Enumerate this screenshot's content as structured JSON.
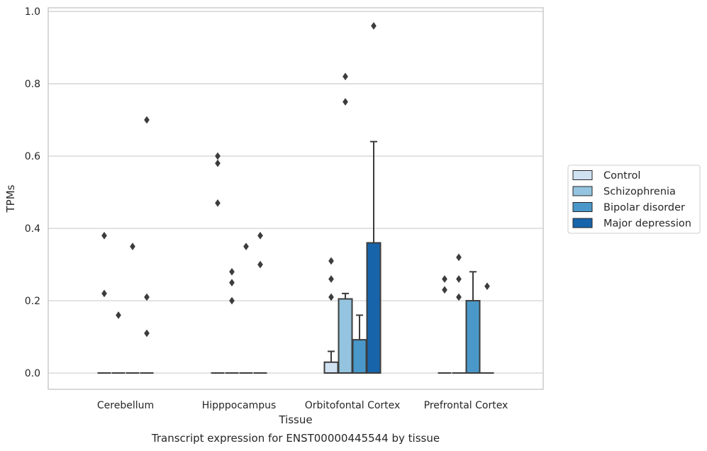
{
  "chart_data": {
    "type": "boxplot",
    "xlabel": "Tissue",
    "ylabel": "TPMs",
    "caption": "Transcript expression for ENST00000445544 by tissue",
    "categories": [
      "Cerebellum",
      "Hipppocampus",
      "Orbitofontal Cortex",
      "Prefrontal Cortex"
    ],
    "ylim": [
      -0.045,
      1.01
    ],
    "yticks": [
      0.0,
      0.2,
      0.4,
      0.6,
      0.8,
      1.0
    ],
    "ytick_labels": [
      "0.0",
      "0.2",
      "0.4",
      "0.6",
      "0.8",
      "1.0"
    ],
    "grid": "horizontal",
    "legend": {
      "placement": "right",
      "entries": [
        "Control",
        "Schizophrenia",
        "Bipolar disorder",
        "Major depression"
      ]
    },
    "series": [
      {
        "name": "Control",
        "color": "#d0e1f2",
        "boxes": [
          {
            "q1": 0,
            "median": 0,
            "q3": 0,
            "whisker_low": 0,
            "whisker_high": 0,
            "outliers": [
              0.38,
              0.22
            ]
          },
          {
            "q1": 0,
            "median": 0,
            "q3": 0,
            "whisker_low": 0,
            "whisker_high": 0,
            "outliers": [
              0.6,
              0.58,
              0.47
            ]
          },
          {
            "q1": 0,
            "median": 0,
            "q3": 0.03,
            "whisker_low": 0,
            "whisker_high": 0.06,
            "outliers": [
              0.31,
              0.26,
              0.21
            ]
          },
          {
            "q1": 0,
            "median": 0,
            "q3": 0,
            "whisker_low": 0,
            "whisker_high": 0,
            "outliers": [
              0.26,
              0.23
            ]
          }
        ]
      },
      {
        "name": "Schizophrenia",
        "color": "#94c4df",
        "boxes": [
          {
            "q1": 0,
            "median": 0,
            "q3": 0,
            "whisker_low": 0,
            "whisker_high": 0,
            "outliers": [
              0.16
            ]
          },
          {
            "q1": 0,
            "median": 0,
            "q3": 0,
            "whisker_low": 0,
            "whisker_high": 0,
            "outliers": [
              0.28,
              0.25,
              0.2
            ]
          },
          {
            "q1": 0,
            "median": 0,
            "q3": 0.205,
            "whisker_low": 0,
            "whisker_high": 0.22,
            "outliers": [
              0.82,
              0.75
            ]
          },
          {
            "q1": 0,
            "median": 0,
            "q3": 0,
            "whisker_low": 0,
            "whisker_high": 0,
            "outliers": [
              0.32,
              0.26,
              0.21
            ]
          }
        ]
      },
      {
        "name": "Bipolar disorder",
        "color": "#4a98c9",
        "boxes": [
          {
            "q1": 0,
            "median": 0,
            "q3": 0,
            "whisker_low": 0,
            "whisker_high": 0,
            "outliers": [
              0.35
            ]
          },
          {
            "q1": 0,
            "median": 0,
            "q3": 0,
            "whisker_low": 0,
            "whisker_high": 0,
            "outliers": [
              0.35
            ]
          },
          {
            "q1": 0,
            "median": 0,
            "q3": 0.092,
            "whisker_low": 0,
            "whisker_high": 0.16,
            "outliers": []
          },
          {
            "q1": 0,
            "median": 0,
            "q3": 0.2,
            "whisker_low": 0,
            "whisker_high": 0.28,
            "outliers": []
          }
        ]
      },
      {
        "name": "Major depression",
        "color": "#1764ab",
        "boxes": [
          {
            "q1": 0,
            "median": 0,
            "q3": 0,
            "whisker_low": 0,
            "whisker_high": 0,
            "outliers": [
              0.7,
              0.21,
              0.11
            ]
          },
          {
            "q1": 0,
            "median": 0,
            "q3": 0,
            "whisker_low": 0,
            "whisker_high": 0,
            "outliers": [
              0.38,
              0.3
            ]
          },
          {
            "q1": 0,
            "median": 0,
            "q3": 0.36,
            "whisker_low": 0,
            "whisker_high": 0.64,
            "outliers": [
              0.96
            ]
          },
          {
            "q1": 0,
            "median": 0,
            "q3": 0,
            "whisker_low": 0,
            "whisker_high": 0,
            "outliers": [
              0.24
            ]
          }
        ]
      }
    ]
  }
}
